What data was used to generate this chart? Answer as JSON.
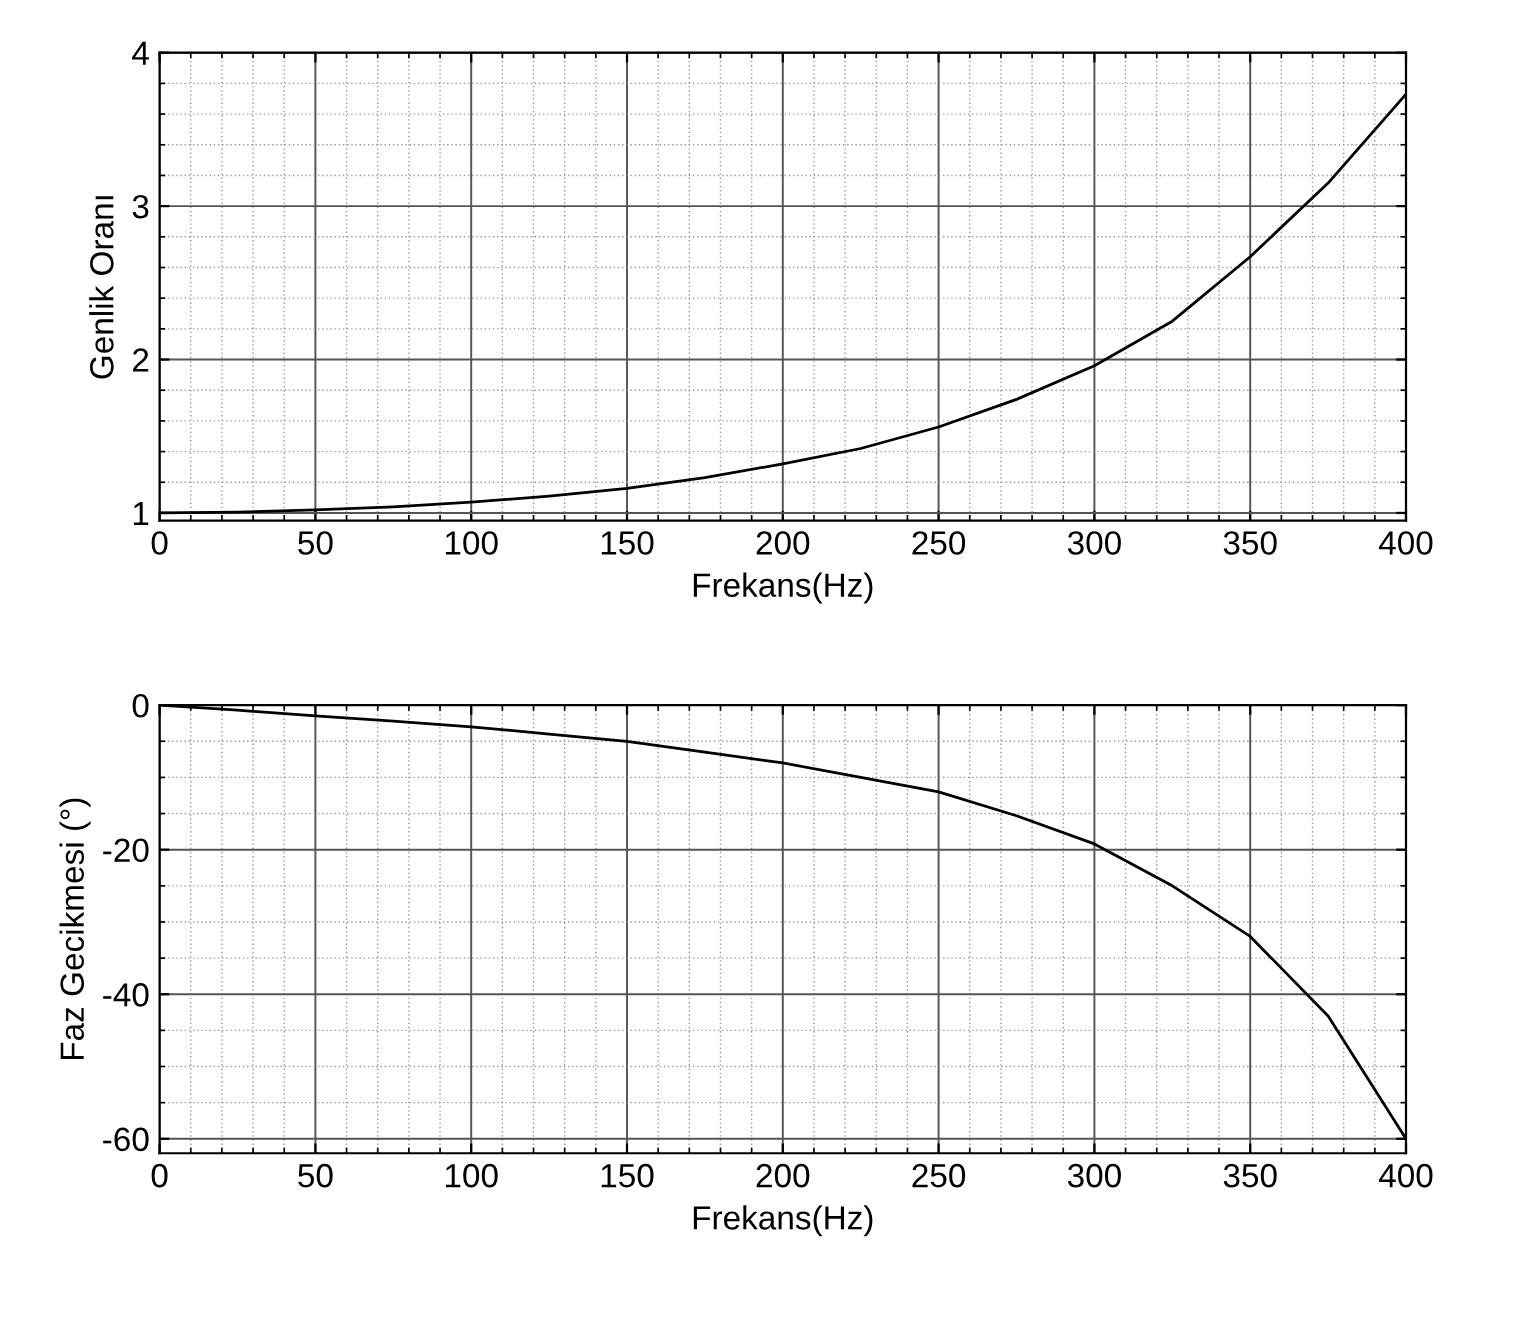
{
  "chart_data": [
    {
      "type": "line",
      "xlabel": "Frekans(Hz)",
      "ylabel": "Genlik Oranı",
      "x": [
        0,
        25,
        50,
        75,
        100,
        125,
        150,
        175,
        200,
        225,
        250,
        275,
        300,
        325,
        350,
        375,
        400
      ],
      "series": [
        {
          "color": "#000000",
          "values": [
            1.0,
            1.005,
            1.02,
            1.04,
            1.07,
            1.11,
            1.16,
            1.23,
            1.32,
            1.42,
            1.56,
            1.74,
            1.96,
            2.25,
            2.67,
            3.15,
            3.73
          ]
        }
      ],
      "xlim": [
        0,
        400
      ],
      "xticks": [
        0,
        50,
        100,
        150,
        200,
        250,
        300,
        350,
        400
      ],
      "ylim": [
        0.95,
        4
      ],
      "yticks": [
        1,
        2,
        3,
        4
      ],
      "grid": true
    },
    {
      "type": "line",
      "xlabel": "Frekans(Hz)",
      "ylabel": "Faz Gecikmesi (°)",
      "x": [
        0,
        25,
        50,
        75,
        100,
        125,
        150,
        175,
        200,
        225,
        250,
        275,
        300,
        325,
        350,
        375,
        400
      ],
      "series": [
        {
          "color": "#000000",
          "values": [
            0,
            -0.7,
            -1.5,
            -2.2,
            -3,
            -4,
            -5,
            -6.5,
            -8,
            -10,
            -12,
            -15.3,
            -19.2,
            -25,
            -32,
            -43,
            -60
          ]
        }
      ],
      "xlim": [
        0,
        400
      ],
      "xticks": [
        0,
        50,
        100,
        150,
        200,
        250,
        300,
        350,
        400
      ],
      "ylim": [
        -62,
        0
      ],
      "yticks": [
        -60,
        -40,
        -20,
        0
      ],
      "grid": true
    }
  ]
}
